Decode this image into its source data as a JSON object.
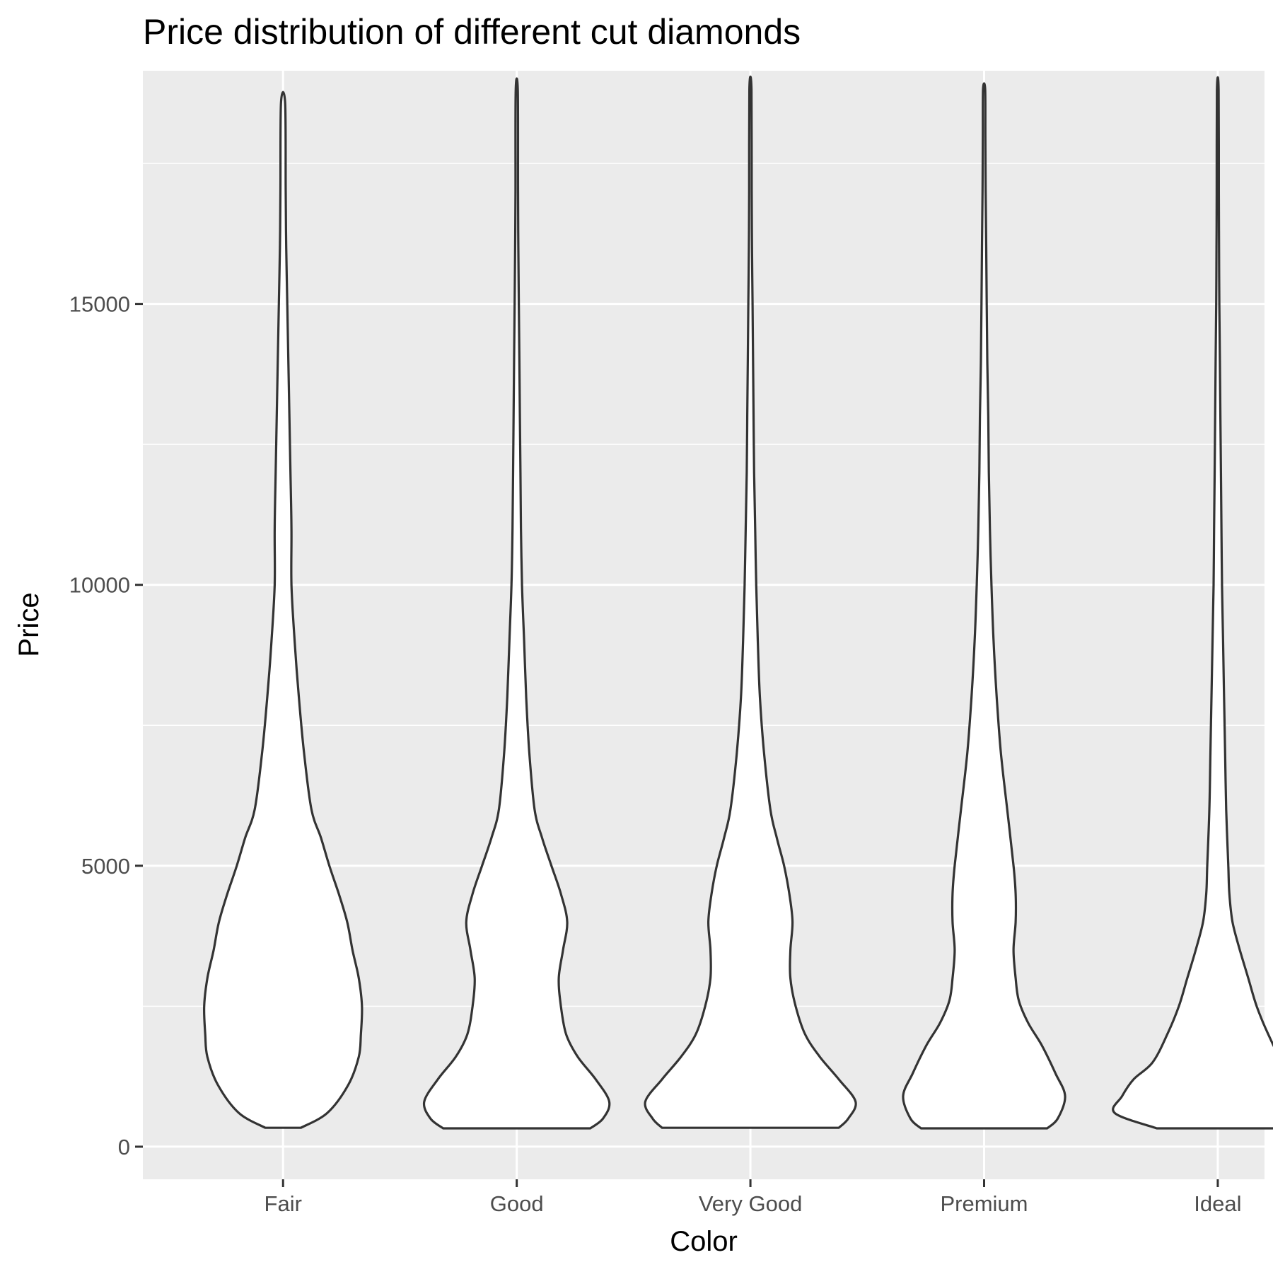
{
  "chart_data": {
    "type": "violin",
    "title": "Price distribution of different cut diamonds",
    "xlabel": "Color",
    "ylabel": "Price",
    "ylim": [
      -580,
      19150
    ],
    "y_ticks": [
      0,
      5000,
      10000,
      15000
    ],
    "y_minor_ticks": [
      2500,
      7500,
      12500,
      17500
    ],
    "grid": true,
    "colors": {
      "panel": "#ebebeb",
      "grid": "#ffffff",
      "outline": "#333333",
      "fill": "#ffffff"
    },
    "categories": [
      "Fair",
      "Good",
      "Very Good",
      "Premium",
      "Ideal"
    ],
    "series": [
      {
        "category": "Fair",
        "min": 337,
        "max": 18574,
        "density": [
          [
            337,
            0.17
          ],
          [
            600,
            0.42
          ],
          [
            1100,
            0.62
          ],
          [
            1600,
            0.72
          ],
          [
            2000,
            0.74
          ],
          [
            2500,
            0.75
          ],
          [
            3000,
            0.72
          ],
          [
            3500,
            0.66
          ],
          [
            4000,
            0.61
          ],
          [
            4500,
            0.53
          ],
          [
            5000,
            0.44
          ],
          [
            5500,
            0.36
          ],
          [
            6000,
            0.27
          ],
          [
            7000,
            0.2
          ],
          [
            8000,
            0.15
          ],
          [
            9000,
            0.11
          ],
          [
            10000,
            0.08
          ],
          [
            11000,
            0.08
          ],
          [
            12000,
            0.07
          ],
          [
            13000,
            0.06
          ],
          [
            14000,
            0.05
          ],
          [
            15000,
            0.04
          ],
          [
            16000,
            0.03
          ],
          [
            17000,
            0.025
          ],
          [
            18574,
            0.02
          ]
        ]
      },
      {
        "category": "Good",
        "min": 327,
        "max": 18788,
        "density": [
          [
            327,
            0.7
          ],
          [
            500,
            0.82
          ],
          [
            800,
            0.88
          ],
          [
            1200,
            0.75
          ],
          [
            1600,
            0.58
          ],
          [
            2000,
            0.47
          ],
          [
            2500,
            0.42
          ],
          [
            3000,
            0.4
          ],
          [
            3500,
            0.44
          ],
          [
            4000,
            0.48
          ],
          [
            4500,
            0.42
          ],
          [
            5000,
            0.33
          ],
          [
            5500,
            0.24
          ],
          [
            6000,
            0.17
          ],
          [
            7000,
            0.12
          ],
          [
            8000,
            0.09
          ],
          [
            9000,
            0.07
          ],
          [
            10000,
            0.05
          ],
          [
            11000,
            0.04
          ],
          [
            12000,
            0.035
          ],
          [
            13000,
            0.03
          ],
          [
            14000,
            0.025
          ],
          [
            15000,
            0.02
          ],
          [
            16000,
            0.015
          ],
          [
            17000,
            0.012
          ],
          [
            18788,
            0.01
          ]
        ]
      },
      {
        "category": "Very Good",
        "min": 336,
        "max": 18818,
        "density": [
          [
            336,
            0.84
          ],
          [
            500,
            0.93
          ],
          [
            800,
            1.0
          ],
          [
            1200,
            0.84
          ],
          [
            1600,
            0.66
          ],
          [
            2000,
            0.52
          ],
          [
            2500,
            0.43
          ],
          [
            3000,
            0.38
          ],
          [
            3500,
            0.38
          ],
          [
            4000,
            0.4
          ],
          [
            4500,
            0.37
          ],
          [
            5000,
            0.32
          ],
          [
            5500,
            0.25
          ],
          [
            6000,
            0.19
          ],
          [
            7000,
            0.13
          ],
          [
            8000,
            0.09
          ],
          [
            9000,
            0.07
          ],
          [
            10000,
            0.055
          ],
          [
            11000,
            0.045
          ],
          [
            12000,
            0.035
          ],
          [
            13000,
            0.03
          ],
          [
            14000,
            0.025
          ],
          [
            15000,
            0.02
          ],
          [
            16000,
            0.015
          ],
          [
            17000,
            0.012
          ],
          [
            18818,
            0.01
          ]
        ]
      },
      {
        "category": "Premium",
        "min": 326,
        "max": 18823,
        "density": [
          [
            326,
            0.6
          ],
          [
            500,
            0.7
          ],
          [
            900,
            0.77
          ],
          [
            1300,
            0.68
          ],
          [
            1800,
            0.55
          ],
          [
            2200,
            0.42
          ],
          [
            2600,
            0.33
          ],
          [
            3000,
            0.3
          ],
          [
            3500,
            0.28
          ],
          [
            4000,
            0.3
          ],
          [
            4500,
            0.3
          ],
          [
            5000,
            0.28
          ],
          [
            6000,
            0.22
          ],
          [
            7000,
            0.16
          ],
          [
            8000,
            0.12
          ],
          [
            9000,
            0.09
          ],
          [
            10000,
            0.07
          ],
          [
            11000,
            0.055
          ],
          [
            12000,
            0.045
          ],
          [
            13000,
            0.04
          ],
          [
            14000,
            0.03
          ],
          [
            15000,
            0.025
          ],
          [
            16000,
            0.02
          ],
          [
            17000,
            0.015
          ],
          [
            18000,
            0.012
          ],
          [
            18823,
            0.01
          ]
        ]
      },
      {
        "category": "Ideal",
        "min": 326,
        "max": 18806,
        "density": [
          [
            326,
            0.58
          ],
          [
            600,
            0.98
          ],
          [
            900,
            0.91
          ],
          [
            1200,
            0.8
          ],
          [
            1500,
            0.62
          ],
          [
            2000,
            0.48
          ],
          [
            2500,
            0.37
          ],
          [
            3000,
            0.29
          ],
          [
            3500,
            0.21
          ],
          [
            4000,
            0.14
          ],
          [
            4500,
            0.11
          ],
          [
            5000,
            0.1
          ],
          [
            6000,
            0.08
          ],
          [
            7000,
            0.07
          ],
          [
            8000,
            0.06
          ],
          [
            9000,
            0.05
          ],
          [
            10000,
            0.04
          ],
          [
            11000,
            0.035
          ],
          [
            12000,
            0.03
          ],
          [
            13000,
            0.025
          ],
          [
            14000,
            0.02
          ],
          [
            15000,
            0.015
          ],
          [
            16000,
            0.012
          ],
          [
            17000,
            0.01
          ],
          [
            18806,
            0.008
          ]
        ]
      }
    ]
  }
}
